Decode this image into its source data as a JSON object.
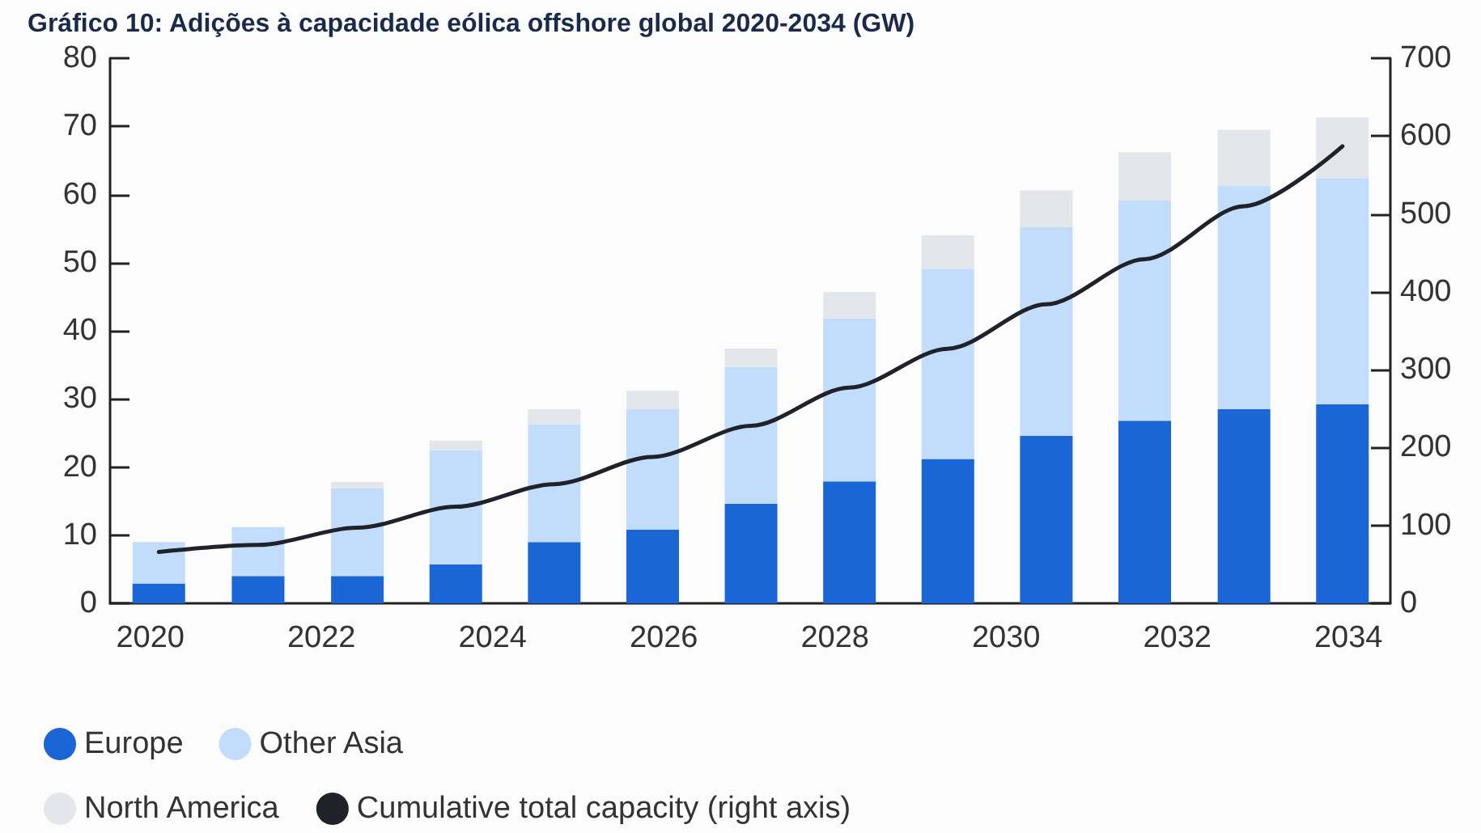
{
  "chart_data": {
    "type": "bar",
    "title": "Gráfico 10: Adições à capacidade eólica offshore global 2020-2034 (GW)",
    "x": [
      2020.1,
      2021.26,
      2022.42,
      2023.57,
      2024.72,
      2025.87,
      2027.02,
      2028.17,
      2029.32,
      2030.47,
      2031.62,
      2032.78,
      2033.93
    ],
    "xlim": [
      2019.53,
      2034.49
    ],
    "xticks": [
      2020,
      2022,
      2024,
      2026,
      2028,
      2030,
      2032,
      2034
    ],
    "ylim": [
      0,
      80
    ],
    "yticks": [
      0,
      10,
      20,
      30,
      40,
      50,
      60,
      70,
      80
    ],
    "y2lim": [
      0,
      700
    ],
    "y2ticks": [
      0,
      100,
      200,
      300,
      400,
      500,
      600,
      700
    ],
    "stacked": true,
    "grid": false,
    "legend": "bottom",
    "marker": "none",
    "series": [
      {
        "name": "Europe",
        "color": "#1a66d6",
        "values": [
          2.9,
          4.0,
          4.0,
          5.7,
          9.0,
          10.8,
          14.6,
          17.9,
          21.2,
          24.6,
          26.8,
          28.5,
          29.2
        ]
      },
      {
        "name": "Other Asia",
        "color": "#c2dcfb",
        "values": [
          6.1,
          7.2,
          12.9,
          16.8,
          17.3,
          17.7,
          20.1,
          23.9,
          27.9,
          30.6,
          32.3,
          32.8,
          33.2
        ]
      },
      {
        "name": "North America",
        "color": "#e3e6ea",
        "values": [
          0,
          0,
          0.9,
          1.4,
          2.2,
          2.7,
          2.7,
          3.9,
          4.9,
          5.4,
          7.1,
          8.2,
          8.9
        ]
      },
      {
        "name": "Cumulative total capacity (right axis)",
        "type": "line",
        "axis": "y2",
        "color": "#1f2329",
        "values": [
          66,
          75,
          97,
          124,
          153,
          188,
          228,
          277,
          327,
          384,
          442,
          510,
          587
        ]
      }
    ]
  }
}
